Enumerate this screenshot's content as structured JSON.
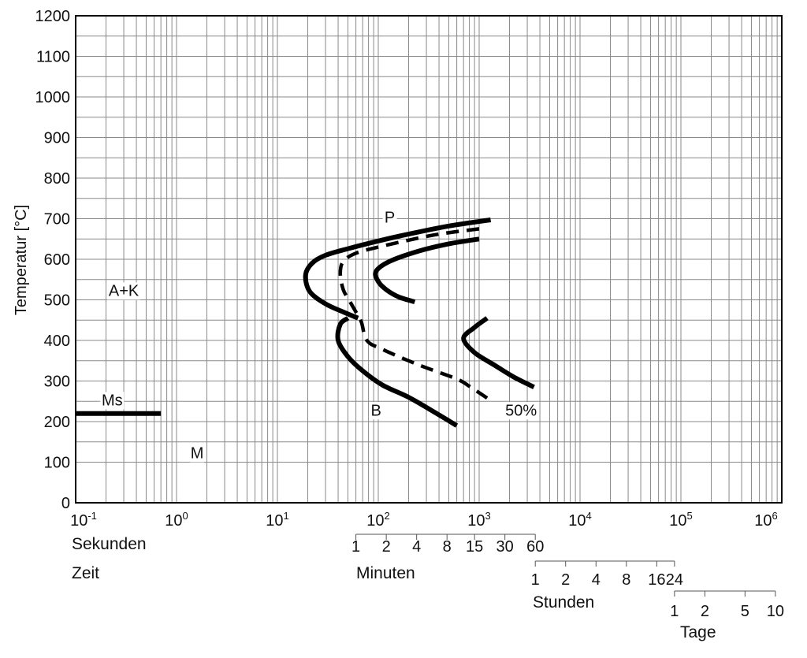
{
  "chart_data": {
    "type": "line",
    "ylabel": "Temperatur  [°C]",
    "ylim": [
      0,
      1200
    ],
    "yticks": [
      "0",
      "100",
      "200",
      "300",
      "400",
      "500",
      "600",
      "700",
      "800",
      "900",
      "1000",
      "1100",
      "1200"
    ],
    "x_scale": "log",
    "xlim_seconds": [
      0.1,
      1000000
    ],
    "xtick_labels": [
      {
        "base": "10",
        "exp": "-1",
        "value": 0.1
      },
      {
        "base": "10",
        "exp": "0",
        "value": 1
      },
      {
        "base": "10",
        "exp": "1",
        "value": 10
      },
      {
        "base": "10",
        "exp": "2",
        "value": 100
      },
      {
        "base": "10",
        "exp": "3",
        "value": 1000
      },
      {
        "base": "10",
        "exp": "4",
        "value": 10000
      },
      {
        "base": "10",
        "exp": "5",
        "value": 100000
      },
      {
        "base": "10",
        "exp": "6",
        "value": 1000000
      }
    ],
    "xaxis_text": {
      "unit": "Sekunden",
      "name": "Zeit"
    },
    "time_scales": [
      {
        "label": "Minuten",
        "unit_seconds": 60,
        "ticks": [
          "1",
          "2",
          "4",
          "8",
          "15",
          "30",
          "60"
        ]
      },
      {
        "label": "Stunden",
        "unit_seconds": 3600,
        "ticks": [
          "1",
          "2",
          "4",
          "8",
          "16",
          "24"
        ]
      },
      {
        "label": "Tage",
        "unit_seconds": 86400,
        "ticks": [
          "1",
          "2",
          "5",
          "10"
        ]
      }
    ],
    "grid": true,
    "series": [
      {
        "style": "solid",
        "points": [
          [
            1300,
            697
          ],
          [
            500,
            682
          ],
          [
            200,
            662
          ],
          [
            100,
            645
          ],
          [
            50,
            626
          ],
          [
            30,
            610
          ],
          [
            22,
            590
          ],
          [
            19,
            560
          ],
          [
            21,
            520
          ],
          [
            30,
            490
          ],
          [
            45,
            470
          ],
          [
            63,
            455
          ]
        ]
      },
      {
        "style": "dashed",
        "points": [
          [
            1000,
            675
          ],
          [
            400,
            662
          ],
          [
            200,
            647
          ],
          [
            100,
            630
          ],
          [
            60,
            615
          ],
          [
            45,
            595
          ],
          [
            42,
            565
          ],
          [
            45,
            525
          ],
          [
            52,
            497
          ],
          [
            60,
            470
          ],
          [
            68,
            445
          ],
          [
            77,
            400
          ],
          [
            110,
            378
          ],
          [
            250,
            340
          ],
          [
            600,
            305
          ],
          [
            800,
            287
          ],
          [
            1200,
            258
          ]
        ]
      },
      {
        "style": "solid",
        "points": [
          [
            1000,
            650
          ],
          [
            500,
            638
          ],
          [
            250,
            620
          ],
          [
            130,
            595
          ],
          [
            95,
            570
          ],
          [
            100,
            545
          ],
          [
            120,
            525
          ],
          [
            160,
            507
          ],
          [
            230,
            495
          ]
        ]
      },
      {
        "style": "solid",
        "points": [
          [
            50,
            455
          ],
          [
            42,
            440
          ],
          [
            40,
            400
          ],
          [
            50,
            360
          ],
          [
            70,
            325
          ],
          [
            110,
            290
          ],
          [
            200,
            260
          ],
          [
            350,
            225
          ],
          [
            600,
            190
          ]
        ]
      },
      {
        "style": "solid",
        "points": [
          [
            1200,
            455
          ],
          [
            900,
            432
          ],
          [
            700,
            405
          ],
          [
            900,
            370
          ],
          [
            1400,
            340
          ],
          [
            2200,
            310
          ],
          [
            3500,
            285
          ]
        ]
      },
      {
        "style": "solid",
        "points": [
          [
            0.1,
            220
          ],
          [
            0.7,
            220
          ]
        ]
      }
    ],
    "annotations": [
      {
        "text": "P",
        "x": 130,
        "y": 690
      },
      {
        "text": "A+K",
        "x": 0.3,
        "y": 510
      },
      {
        "text": "Ms",
        "x": 0.23,
        "y": 240
      },
      {
        "text": "B",
        "x": 95,
        "y": 215
      },
      {
        "text": "50%",
        "x": 2600,
        "y": 215
      },
      {
        "text": "M",
        "x": 1.6,
        "y": 110
      }
    ]
  }
}
